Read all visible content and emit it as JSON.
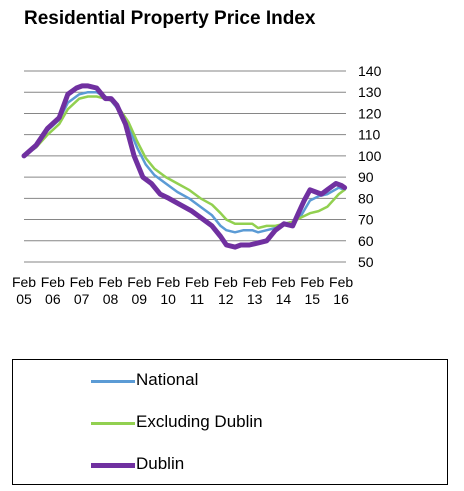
{
  "chart_data": {
    "type": "line",
    "title": "Residential Property Price Index",
    "ylim": [
      50,
      140
    ],
    "yticks": [
      50,
      60,
      70,
      80,
      90,
      100,
      110,
      120,
      130,
      140
    ],
    "xlim": [
      2005.08,
      2016.25
    ],
    "xtick_positions": [
      2005.08,
      2006.08,
      2007.08,
      2008.08,
      2009.08,
      2010.08,
      2011.08,
      2012.08,
      2013.08,
      2014.08,
      2015.08,
      2016.08
    ],
    "xtick_labels": [
      [
        "Feb",
        "05"
      ],
      [
        "Feb",
        "06"
      ],
      [
        "Feb",
        "07"
      ],
      [
        "Feb",
        "08"
      ],
      [
        "Feb",
        "09"
      ],
      [
        "Feb",
        "10"
      ],
      [
        "Feb",
        "11"
      ],
      [
        "Feb",
        "12"
      ],
      [
        "Feb",
        "13"
      ],
      [
        "Feb",
        "14"
      ],
      [
        "Feb",
        "15"
      ],
      [
        "Feb",
        "16"
      ]
    ],
    "grid": true,
    "legend_position": "bottom",
    "series": [
      {
        "name": "National",
        "color": "#5b9bd5",
        "width": 2.5,
        "x": [
          2005.08,
          2005.5,
          2005.9,
          2006.3,
          2006.6,
          2007.0,
          2007.3,
          2007.6,
          2007.9,
          2008.1,
          2008.4,
          2008.7,
          2009.0,
          2009.3,
          2009.6,
          2010.0,
          2010.4,
          2010.8,
          2011.2,
          2011.6,
          2011.9,
          2012.1,
          2012.4,
          2012.7,
          2013.0,
          2013.2,
          2013.5,
          2013.8,
          2014.1,
          2014.4,
          2014.7,
          2015.0,
          2015.3,
          2015.6,
          2016.0,
          2016.2
        ],
        "y": [
          100,
          104,
          112,
          117,
          125,
          129,
          130,
          130,
          128,
          126,
          121,
          114,
          104,
          96,
          91,
          87,
          83,
          80,
          76,
          72,
          67,
          65,
          64,
          65,
          65,
          64,
          65,
          66,
          68,
          69,
          72,
          79,
          81,
          82,
          85,
          84
        ]
      },
      {
        "name": "Excluding Dublin",
        "color": "#92d050",
        "width": 2.5,
        "x": [
          2005.08,
          2005.5,
          2005.9,
          2006.3,
          2006.6,
          2007.0,
          2007.3,
          2007.6,
          2007.9,
          2008.1,
          2008.4,
          2008.7,
          2009.0,
          2009.3,
          2009.6,
          2010.0,
          2010.4,
          2010.8,
          2011.2,
          2011.6,
          2011.9,
          2012.1,
          2012.4,
          2012.7,
          2013.0,
          2013.2,
          2013.5,
          2013.8,
          2014.1,
          2014.4,
          2014.7,
          2015.0,
          2015.3,
          2015.6,
          2016.0,
          2016.2
        ],
        "y": [
          100,
          104,
          110,
          115,
          122,
          127,
          128,
          128,
          127,
          126,
          122,
          116,
          107,
          99,
          94,
          90,
          87,
          84,
          80,
          77,
          73,
          70,
          68,
          68,
          68,
          66,
          67,
          67,
          68,
          69,
          71,
          73,
          74,
          76,
          82,
          84
        ]
      },
      {
        "name": "Dublin",
        "color": "#7030a0",
        "width": 5,
        "x": [
          2005.08,
          2005.5,
          2005.9,
          2006.3,
          2006.6,
          2006.9,
          2007.1,
          2007.3,
          2007.6,
          2007.9,
          2008.1,
          2008.3,
          2008.6,
          2008.9,
          2009.2,
          2009.5,
          2009.8,
          2010.1,
          2010.5,
          2010.9,
          2011.2,
          2011.6,
          2011.9,
          2012.1,
          2012.4,
          2012.6,
          2012.9,
          2013.2,
          2013.5,
          2013.8,
          2014.1,
          2014.4,
          2014.6,
          2014.8,
          2015.0,
          2015.2,
          2015.4,
          2015.6,
          2015.9,
          2016.1,
          2016.2
        ],
        "y": [
          100,
          105,
          113,
          118,
          129,
          132,
          133,
          133,
          132,
          127,
          127,
          124,
          115,
          100,
          90,
          87,
          82,
          80,
          77,
          74,
          71,
          67,
          62,
          58,
          57,
          58,
          58,
          59,
          60,
          65,
          68,
          67,
          73,
          79,
          84,
          83,
          82,
          84,
          87,
          86,
          85
        ]
      }
    ]
  }
}
